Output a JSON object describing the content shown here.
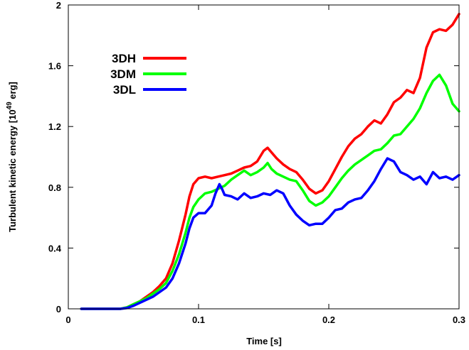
{
  "chart_data": {
    "type": "line",
    "xlabel": "Time [s]",
    "ylabel_main": "Turbulent kinetic energy [10",
    "ylabel_sup": "49",
    "ylabel_tail": " erg]",
    "xlim": [
      0,
      0.3
    ],
    "ylim": [
      0,
      2
    ],
    "xticks": [
      "0",
      "0.1",
      "0.2",
      "0.3"
    ],
    "yticks": [
      "0",
      "0.4",
      "0.8",
      "1.2",
      "1.6",
      "2"
    ],
    "grid": false,
    "legend_position": "top-left",
    "series": [
      {
        "name": "3DH",
        "color": "#ff0000",
        "x": [
          0.01,
          0.02,
          0.03,
          0.04,
          0.045,
          0.05,
          0.055,
          0.06,
          0.065,
          0.07,
          0.075,
          0.08,
          0.085,
          0.09,
          0.093,
          0.096,
          0.1,
          0.105,
          0.11,
          0.115,
          0.12,
          0.125,
          0.13,
          0.135,
          0.14,
          0.145,
          0.15,
          0.153,
          0.156,
          0.16,
          0.165,
          0.17,
          0.175,
          0.18,
          0.185,
          0.19,
          0.195,
          0.2,
          0.205,
          0.21,
          0.215,
          0.22,
          0.225,
          0.23,
          0.235,
          0.24,
          0.245,
          0.25,
          0.255,
          0.26,
          0.265,
          0.27,
          0.275,
          0.28,
          0.285,
          0.29,
          0.295,
          0.3
        ],
        "values": [
          0,
          0,
          0,
          0,
          0.01,
          0.03,
          0.05,
          0.08,
          0.11,
          0.15,
          0.2,
          0.3,
          0.45,
          0.62,
          0.74,
          0.82,
          0.86,
          0.87,
          0.86,
          0.87,
          0.88,
          0.89,
          0.91,
          0.93,
          0.94,
          0.97,
          1.04,
          1.06,
          1.03,
          0.99,
          0.95,
          0.92,
          0.9,
          0.85,
          0.79,
          0.76,
          0.78,
          0.84,
          0.92,
          1.0,
          1.07,
          1.12,
          1.15,
          1.2,
          1.24,
          1.22,
          1.28,
          1.36,
          1.39,
          1.44,
          1.42,
          1.52,
          1.72,
          1.82,
          1.84,
          1.83,
          1.87,
          1.94
        ]
      },
      {
        "name": "3DM",
        "color": "#00ff00",
        "x": [
          0.01,
          0.02,
          0.03,
          0.04,
          0.045,
          0.05,
          0.055,
          0.06,
          0.065,
          0.07,
          0.075,
          0.08,
          0.085,
          0.09,
          0.093,
          0.096,
          0.1,
          0.105,
          0.11,
          0.115,
          0.12,
          0.125,
          0.13,
          0.135,
          0.14,
          0.145,
          0.15,
          0.153,
          0.156,
          0.16,
          0.165,
          0.17,
          0.175,
          0.18,
          0.185,
          0.19,
          0.195,
          0.2,
          0.205,
          0.21,
          0.215,
          0.22,
          0.225,
          0.23,
          0.235,
          0.24,
          0.245,
          0.25,
          0.255,
          0.26,
          0.265,
          0.27,
          0.275,
          0.28,
          0.285,
          0.29,
          0.295,
          0.3
        ],
        "values": [
          0,
          0,
          0,
          0,
          0.01,
          0.03,
          0.05,
          0.07,
          0.1,
          0.13,
          0.17,
          0.25,
          0.36,
          0.5,
          0.6,
          0.67,
          0.72,
          0.76,
          0.77,
          0.79,
          0.81,
          0.85,
          0.88,
          0.91,
          0.88,
          0.9,
          0.93,
          0.96,
          0.92,
          0.89,
          0.87,
          0.85,
          0.84,
          0.78,
          0.71,
          0.68,
          0.7,
          0.74,
          0.8,
          0.86,
          0.91,
          0.95,
          0.98,
          1.01,
          1.04,
          1.05,
          1.09,
          1.14,
          1.15,
          1.2,
          1.25,
          1.32,
          1.42,
          1.5,
          1.54,
          1.47,
          1.35,
          1.3
        ]
      },
      {
        "name": "3DL",
        "color": "#0000ff",
        "x": [
          0.01,
          0.02,
          0.03,
          0.04,
          0.045,
          0.05,
          0.055,
          0.06,
          0.065,
          0.07,
          0.075,
          0.08,
          0.085,
          0.09,
          0.093,
          0.096,
          0.1,
          0.105,
          0.11,
          0.113,
          0.116,
          0.118,
          0.12,
          0.125,
          0.13,
          0.135,
          0.14,
          0.145,
          0.15,
          0.155,
          0.16,
          0.165,
          0.17,
          0.175,
          0.18,
          0.185,
          0.19,
          0.195,
          0.2,
          0.205,
          0.21,
          0.215,
          0.22,
          0.225,
          0.23,
          0.235,
          0.24,
          0.245,
          0.25,
          0.255,
          0.26,
          0.265,
          0.27,
          0.275,
          0.28,
          0.285,
          0.29,
          0.295,
          0.3
        ],
        "values": [
          0,
          0,
          0,
          0,
          0.005,
          0.02,
          0.04,
          0.06,
          0.08,
          0.11,
          0.14,
          0.2,
          0.3,
          0.43,
          0.53,
          0.6,
          0.63,
          0.63,
          0.68,
          0.76,
          0.82,
          0.79,
          0.75,
          0.74,
          0.72,
          0.76,
          0.73,
          0.74,
          0.76,
          0.75,
          0.78,
          0.76,
          0.68,
          0.62,
          0.58,
          0.55,
          0.56,
          0.56,
          0.6,
          0.65,
          0.66,
          0.7,
          0.72,
          0.73,
          0.78,
          0.84,
          0.92,
          0.99,
          0.97,
          0.9,
          0.88,
          0.85,
          0.87,
          0.82,
          0.9,
          0.86,
          0.87,
          0.85,
          0.88
        ]
      }
    ]
  }
}
